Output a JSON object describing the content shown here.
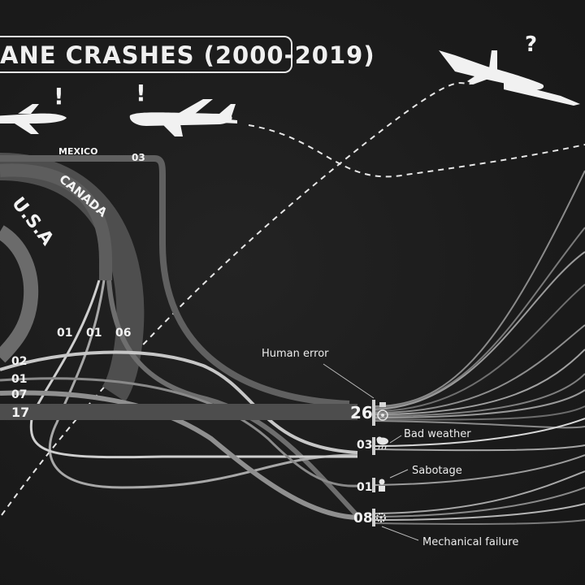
{
  "title": "ANE CRASHES (2000-2019)",
  "marks": {
    "exclaim_1": "!",
    "exclaim_2": "!",
    "question": "?"
  },
  "countries": {
    "mexico": {
      "name": "MEXICO",
      "count": "03"
    },
    "canada": {
      "name": "CANADA"
    },
    "usa": {
      "name": "U.S.A"
    }
  },
  "split_counts": [
    "01",
    "01",
    "06"
  ],
  "left_counts": [
    "02",
    "01",
    "07",
    "17"
  ],
  "causes": [
    {
      "label": "Human error",
      "count": "26"
    },
    {
      "label": "Bad weather",
      "count": "03"
    },
    {
      "label": "Sabotage",
      "count": "01"
    },
    {
      "label": "Mechanical failure",
      "count": "08"
    }
  ],
  "colors": {
    "background": "#1c1c1c",
    "flow_light": "#d9d9d9",
    "flow_mid": "#8d8d8d",
    "flow_dark": "#5a5a5a"
  }
}
